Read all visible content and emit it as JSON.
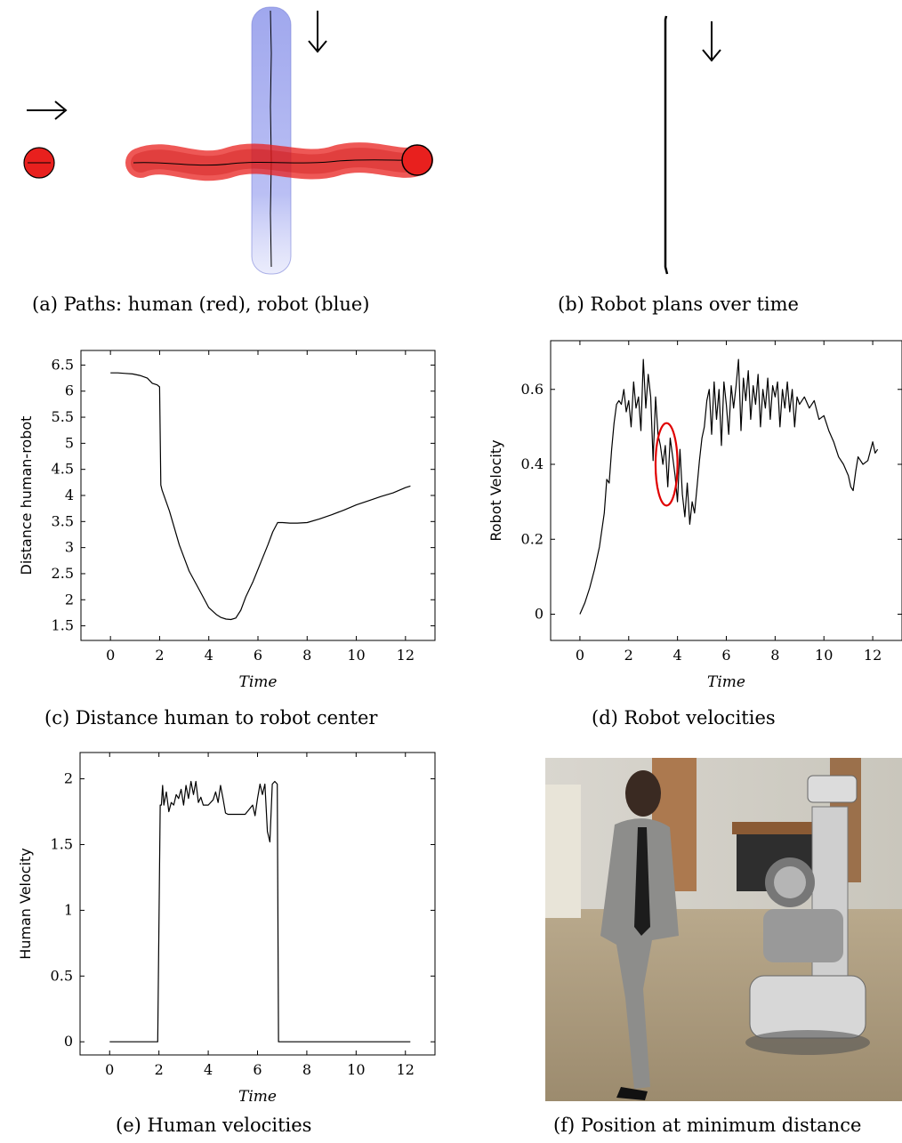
{
  "captions": {
    "a": "(a) Paths: human (red), robot (blue)",
    "b": "(b) Robot plans over time",
    "c": "(c) Distance human to robot center",
    "d": "(d) Robot velocities",
    "e": "(e) Human velocities",
    "f": "(f) Position at minimum distance"
  },
  "colors": {
    "human": "#e8201e",
    "robot": "#9ea6ee",
    "line": "#000000",
    "highlight": "#e00000"
  },
  "chart_data": [
    {
      "id": "c",
      "type": "line",
      "xlabel": "Time",
      "ylabel": "Distance human-robot",
      "xlim": [
        -1.2,
        13.2
      ],
      "ylim": [
        1.22,
        6.78
      ],
      "xticks": [
        0,
        2,
        4,
        6,
        8,
        10,
        12
      ],
      "yticks": [
        1.5,
        2,
        2.5,
        3,
        3.5,
        4,
        4.5,
        5,
        5.5,
        6,
        6.5
      ],
      "ytick_labels": [
        "1.5",
        "2",
        "2.5",
        "3",
        "3.5",
        "4",
        "4.5",
        "5",
        "5.5",
        "6",
        "6.5"
      ],
      "x": [
        0,
        0.3,
        0.6,
        0.9,
        1.2,
        1.5,
        1.7,
        1.9,
        2.0,
        2.05,
        2.1,
        2.4,
        2.8,
        3.2,
        3.6,
        4.0,
        4.3,
        4.5,
        4.7,
        4.9,
        5.1,
        5.3,
        5.5,
        5.8,
        6.1,
        6.4,
        6.6,
        6.8,
        7.0,
        7.3,
        7.6,
        8.0,
        8.5,
        9.0,
        9.5,
        10.0,
        10.5,
        11.0,
        11.5,
        12.0,
        12.2
      ],
      "y": [
        6.35,
        6.35,
        6.34,
        6.33,
        6.3,
        6.25,
        6.15,
        6.12,
        6.08,
        4.2,
        4.1,
        3.7,
        3.05,
        2.55,
        2.2,
        1.85,
        1.72,
        1.66,
        1.63,
        1.62,
        1.65,
        1.8,
        2.05,
        2.35,
        2.7,
        3.05,
        3.3,
        3.48,
        3.48,
        3.47,
        3.47,
        3.48,
        3.55,
        3.63,
        3.72,
        3.82,
        3.9,
        3.98,
        4.05,
        4.15,
        4.18
      ]
    },
    {
      "id": "d",
      "type": "line",
      "xlabel": "Time",
      "ylabel": "Robot Velocity",
      "xlim": [
        -1.2,
        13.2
      ],
      "ylim": [
        -0.07,
        0.73
      ],
      "xticks": [
        0,
        2,
        4,
        6,
        8,
        10,
        12
      ],
      "yticks": [
        0,
        0.2,
        0.4,
        0.6
      ],
      "ytick_labels": [
        "0",
        "0.2",
        "0.4",
        "0.6"
      ],
      "annotation": {
        "type": "ellipse",
        "cx": 3.55,
        "cy": 0.4,
        "rx": 0.45,
        "ry": 0.11
      },
      "x": [
        0,
        0.2,
        0.4,
        0.6,
        0.8,
        1.0,
        1.1,
        1.2,
        1.3,
        1.4,
        1.5,
        1.6,
        1.7,
        1.8,
        1.9,
        2.0,
        2.1,
        2.2,
        2.3,
        2.4,
        2.5,
        2.6,
        2.7,
        2.8,
        2.9,
        3.0,
        3.1,
        3.2,
        3.3,
        3.4,
        3.5,
        3.6,
        3.7,
        3.8,
        3.9,
        4.0,
        4.1,
        4.2,
        4.3,
        4.4,
        4.5,
        4.6,
        4.7,
        4.8,
        4.9,
        5.0,
        5.1,
        5.2,
        5.3,
        5.4,
        5.5,
        5.6,
        5.7,
        5.8,
        5.9,
        6.0,
        6.1,
        6.2,
        6.3,
        6.4,
        6.5,
        6.6,
        6.7,
        6.8,
        6.9,
        7.0,
        7.1,
        7.2,
        7.3,
        7.4,
        7.5,
        7.6,
        7.7,
        7.8,
        7.9,
        8.0,
        8.1,
        8.2,
        8.3,
        8.4,
        8.5,
        8.6,
        8.7,
        8.8,
        8.9,
        9.0,
        9.2,
        9.4,
        9.6,
        9.8,
        10.0,
        10.2,
        10.4,
        10.6,
        10.8,
        11.0,
        11.1,
        11.2,
        11.3,
        11.4,
        11.6,
        11.8,
        12.0,
        12.1,
        12.2
      ],
      "y": [
        0.0,
        0.03,
        0.07,
        0.12,
        0.18,
        0.27,
        0.36,
        0.35,
        0.44,
        0.51,
        0.56,
        0.57,
        0.56,
        0.6,
        0.54,
        0.57,
        0.5,
        0.62,
        0.55,
        0.58,
        0.49,
        0.68,
        0.55,
        0.64,
        0.58,
        0.41,
        0.58,
        0.48,
        0.45,
        0.4,
        0.45,
        0.34,
        0.47,
        0.42,
        0.37,
        0.3,
        0.44,
        0.32,
        0.26,
        0.35,
        0.24,
        0.3,
        0.27,
        0.34,
        0.41,
        0.47,
        0.5,
        0.57,
        0.6,
        0.48,
        0.62,
        0.52,
        0.6,
        0.45,
        0.62,
        0.56,
        0.48,
        0.61,
        0.55,
        0.61,
        0.68,
        0.49,
        0.63,
        0.57,
        0.65,
        0.52,
        0.61,
        0.56,
        0.64,
        0.5,
        0.6,
        0.55,
        0.63,
        0.52,
        0.61,
        0.58,
        0.62,
        0.5,
        0.6,
        0.55,
        0.62,
        0.54,
        0.6,
        0.5,
        0.58,
        0.56,
        0.58,
        0.55,
        0.57,
        0.52,
        0.53,
        0.49,
        0.46,
        0.42,
        0.4,
        0.37,
        0.34,
        0.33,
        0.38,
        0.42,
        0.4,
        0.41,
        0.46,
        0.43,
        0.44
      ]
    },
    {
      "id": "e",
      "type": "line",
      "xlabel": "Time",
      "ylabel": "Human Velocity",
      "xlim": [
        -1.2,
        13.2
      ],
      "ylim": [
        -0.1,
        2.2
      ],
      "xticks": [
        0,
        2,
        4,
        6,
        8,
        10,
        12
      ],
      "yticks": [
        0,
        0.5,
        1,
        1.5,
        2
      ],
      "ytick_labels": [
        "0",
        "0.5",
        "1",
        "1.5",
        "2"
      ],
      "x": [
        0,
        1.95,
        2.05,
        2.1,
        2.15,
        2.2,
        2.3,
        2.4,
        2.5,
        2.6,
        2.7,
        2.8,
        2.9,
        3.0,
        3.1,
        3.2,
        3.3,
        3.4,
        3.5,
        3.6,
        3.7,
        3.8,
        4.0,
        4.2,
        4.3,
        4.4,
        4.5,
        4.6,
        4.7,
        4.8,
        5.0,
        5.5,
        5.8,
        5.9,
        6.0,
        6.1,
        6.2,
        6.3,
        6.4,
        6.5,
        6.6,
        6.7,
        6.8,
        6.85,
        12.2
      ],
      "y": [
        0,
        0,
        1.8,
        1.8,
        1.95,
        1.8,
        1.9,
        1.75,
        1.82,
        1.8,
        1.88,
        1.85,
        1.92,
        1.8,
        1.95,
        1.85,
        1.98,
        1.88,
        1.98,
        1.82,
        1.86,
        1.8,
        1.8,
        1.84,
        1.9,
        1.82,
        1.95,
        1.85,
        1.74,
        1.73,
        1.73,
        1.73,
        1.8,
        1.72,
        1.85,
        1.96,
        1.88,
        1.96,
        1.6,
        1.52,
        1.96,
        1.98,
        1.96,
        0,
        0
      ]
    }
  ]
}
